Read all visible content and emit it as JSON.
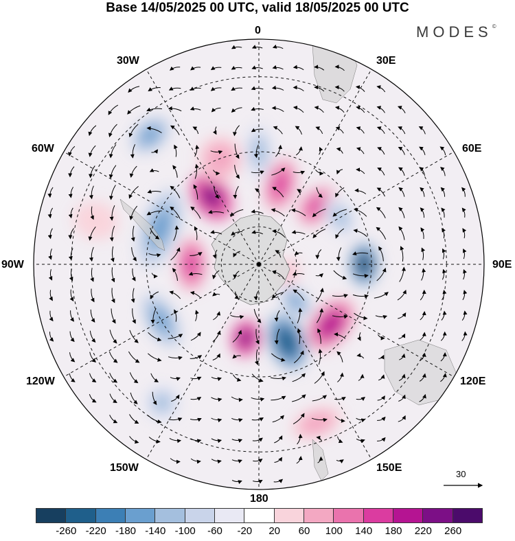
{
  "title": "Base 14/05/2025 00 UTC, valid 18/05/2025 00 UTC",
  "brand": "MODES",
  "brand_mark": "©",
  "longitude_labels": {
    "top": "0",
    "top_right": "30E",
    "right_upper": "60E",
    "right": "90E",
    "right_lower": "120E",
    "bottom_right": "150E",
    "bottom": "180",
    "bottom_left": "150W",
    "left_lower": "120W",
    "left": "90W",
    "left_upper": "60W",
    "top_left": "30W"
  },
  "reference_vector": "30",
  "colorbar": {
    "ticks": [
      "-260",
      "-220",
      "-180",
      "-140",
      "-100",
      "-60",
      "-20",
      "20",
      "60",
      "100",
      "140",
      "180",
      "220",
      "260"
    ],
    "colors": [
      "#173f5f",
      "#1f5f8b",
      "#3c7fb5",
      "#6a9fcf",
      "#a4bfde",
      "#c9d4ea",
      "#e9e9f4",
      "#ffffff",
      "#f9d4dc",
      "#f3a8c2",
      "#ea73ad",
      "#db3ca0",
      "#b51492",
      "#7c0f86",
      "#4b0b6b"
    ]
  },
  "anomalies": [
    {
      "lon": -35,
      "colat": 22,
      "value": 230,
      "rx": 5,
      "ry": 7
    },
    {
      "lon": -20,
      "colat": 30,
      "value": 100,
      "rx": 6,
      "ry": 6
    },
    {
      "lon": 0,
      "colat": 30,
      "value": -120,
      "rx": 4,
      "ry": 8
    },
    {
      "lon": 15,
      "colat": 22,
      "value": 150,
      "rx": 4,
      "ry": 7
    },
    {
      "lon": 45,
      "colat": 22,
      "value": 180,
      "rx": 4,
      "ry": 6
    },
    {
      "lon": 60,
      "colat": 25,
      "value": -120,
      "rx": 6,
      "ry": 4
    },
    {
      "lon": 90,
      "colat": 28,
      "value": -260,
      "rx": 6,
      "ry": 4
    },
    {
      "lon": 130,
      "colat": 25,
      "value": 220,
      "rx": 8,
      "ry": 5
    },
    {
      "lon": 160,
      "colat": 22,
      "value": -240,
      "rx": 5,
      "ry": 8
    },
    {
      "lon": -170,
      "colat": 20,
      "value": 230,
      "rx": 4,
      "ry": 5
    },
    {
      "lon": -145,
      "colat": 45,
      "value": -100,
      "rx": 5,
      "ry": 5
    },
    {
      "lon": 160,
      "colat": 45,
      "value": 100,
      "rx": 7,
      "ry": 4
    },
    {
      "lon": -120,
      "colat": 30,
      "value": -160,
      "rx": 8,
      "ry": 4
    },
    {
      "lon": -90,
      "colat": 18,
      "value": 160,
      "rx": 7,
      "ry": 4
    },
    {
      "lon": -70,
      "colat": 28,
      "value": -170,
      "rx": 11,
      "ry": 5
    },
    {
      "lon": 105,
      "colat": 8,
      "value": 80,
      "rx": 4,
      "ry": 3
    },
    {
      "lon": 135,
      "colat": 14,
      "value": -160,
      "rx": 3,
      "ry": 5
    },
    {
      "lon": -40,
      "colat": 45,
      "value": -140,
      "rx": 6,
      "ry": 4
    },
    {
      "lon": -75,
      "colat": 45,
      "value": 60,
      "rx": 5,
      "ry": 6
    }
  ]
}
